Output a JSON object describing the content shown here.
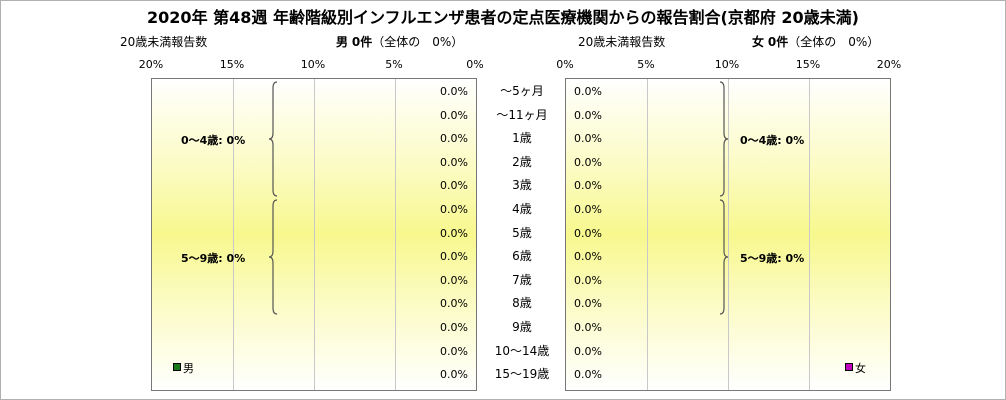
{
  "title": "2020年 第48週 年齢階級別インフルエンザ患者の定点医療機関からの報告割合(京都府 20歳未満)",
  "left_panel": {
    "report_label": "20歳未満報告数",
    "sex": "男",
    "count_text": "0件",
    "share_text": "（全体の　0%）",
    "legend": "男",
    "legend_color": "#1a7a1a",
    "ticks": [
      "20%",
      "15%",
      "10%",
      "5%",
      "0%"
    ],
    "groups": [
      {
        "label": "0〜4歳: 0%",
        "from": 0,
        "to": 5
      },
      {
        "label": "5〜9歳: 0%",
        "from": 5,
        "to": 10
      }
    ]
  },
  "right_panel": {
    "report_label": "20歳未満報告数",
    "sex": "女",
    "count_text": "0件",
    "share_text": "（全体の　0%）",
    "legend": "女",
    "legend_color": "#c000c0",
    "ticks": [
      "0%",
      "5%",
      "10%",
      "15%",
      "20%"
    ],
    "groups": [
      {
        "label": "0〜4歳: 0%",
        "from": 0,
        "to": 5
      },
      {
        "label": "5〜9歳: 0%",
        "from": 5,
        "to": 10
      }
    ]
  },
  "chart_data": {
    "type": "bar",
    "orientation": "horizontal",
    "layout": "population-pyramid",
    "categories": [
      "〜5ヶ月",
      "〜11ヶ月",
      "1歳",
      "2歳",
      "3歳",
      "4歳",
      "5歳",
      "6歳",
      "7歳",
      "8歳",
      "9歳",
      "10〜14歳",
      "15〜19歳"
    ],
    "series": [
      {
        "name": "男",
        "values": [
          0,
          0,
          0,
          0,
          0,
          0,
          0,
          0,
          0,
          0,
          0,
          0,
          0
        ],
        "labels": [
          "0.0%",
          "0.0%",
          "0.0%",
          "0.0%",
          "0.0%",
          "0.0%",
          "0.0%",
          "0.0%",
          "0.0%",
          "0.0%",
          "0.0%",
          "0.0%",
          "0.0%"
        ]
      },
      {
        "name": "女",
        "values": [
          0,
          0,
          0,
          0,
          0,
          0,
          0,
          0,
          0,
          0,
          0,
          0,
          0
        ],
        "labels": [
          "0.0%",
          "0.0%",
          "0.0%",
          "0.0%",
          "0.0%",
          "0.0%",
          "0.0%",
          "0.0%",
          "0.0%",
          "0.0%",
          "0.0%",
          "0.0%",
          "0.0%"
        ]
      }
    ],
    "xlim": [
      0,
      20
    ],
    "xticks": [
      0,
      5,
      10,
      15,
      20
    ],
    "grid": true,
    "legend_position": "bottom"
  }
}
